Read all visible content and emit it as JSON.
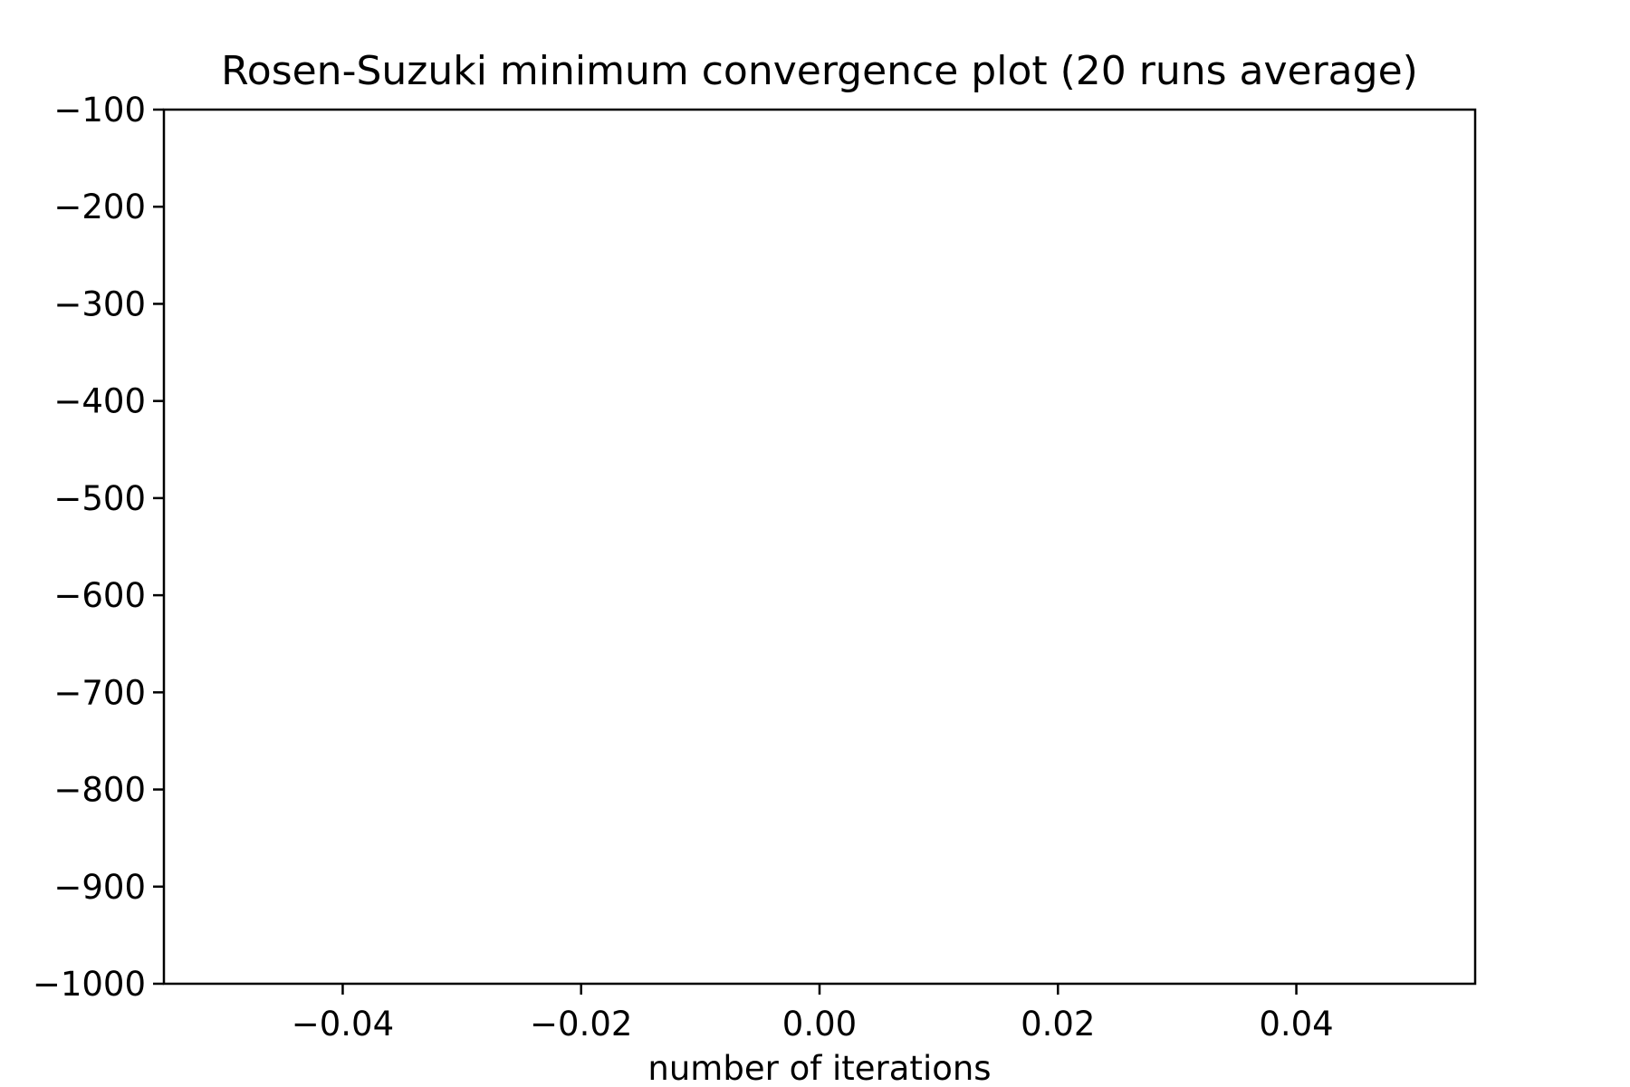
{
  "chart_data": {
    "type": "line",
    "title": "Rosen-Suzuki minimum convergence plot (20 runs average)",
    "xlabel": "number of iterations",
    "ylabel": "",
    "xlim": [
      -0.055,
      0.055
    ],
    "ylim": [
      -1000,
      -100
    ],
    "grid": false,
    "legend": "none",
    "series": [],
    "x_ticks": [
      {
        "value": -0.04,
        "label": "−0.04"
      },
      {
        "value": -0.02,
        "label": "−0.02"
      },
      {
        "value": 0.0,
        "label": "0.00"
      },
      {
        "value": 0.02,
        "label": "0.02"
      },
      {
        "value": 0.04,
        "label": "0.04"
      }
    ],
    "y_ticks": [
      {
        "value": -100,
        "label": "−100"
      },
      {
        "value": -200,
        "label": "−200"
      },
      {
        "value": -300,
        "label": "−300"
      },
      {
        "value": -400,
        "label": "−400"
      },
      {
        "value": -500,
        "label": "−500"
      },
      {
        "value": -600,
        "label": "−600"
      },
      {
        "value": -700,
        "label": "−700"
      },
      {
        "value": -800,
        "label": "−800"
      },
      {
        "value": -900,
        "label": "−900"
      },
      {
        "value": -1000,
        "label": "−1000"
      }
    ],
    "colors": {
      "axis": "#000000",
      "background": "#ffffff"
    }
  }
}
